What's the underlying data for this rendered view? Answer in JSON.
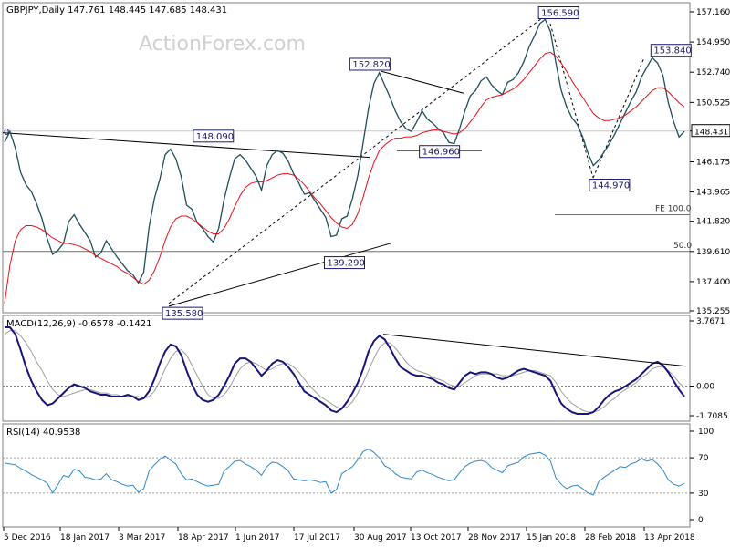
{
  "watermark": "ActionForex.com",
  "chart_data": {
    "type": "line",
    "symbol": "GBPJPY",
    "timeframe": "Daily",
    "header": "GBPJPY,Daily  147.761 148.445 147.685 148.431",
    "x_labels": [
      "5 Dec 2016",
      "18 Jan 2017",
      "3 Mar 2017",
      "18 Apr 2017",
      "1 Jun 2017",
      "17 Jul 2017",
      "30 Aug 2017",
      "13 Oct 2017",
      "28 Nov 2017",
      "15 Jan 2018",
      "28 Feb 2018",
      "13 Apr 2018"
    ],
    "price_panel": {
      "y_ticks": [
        "157.160",
        "154.950",
        "152.740",
        "150.525",
        "148.431",
        "146.175",
        "143.965",
        "141.820",
        "139.610",
        "137.400",
        "135.255"
      ],
      "ylim": [
        135.255,
        157.16
      ],
      "last_price": "148.431",
      "annotations": [
        {
          "label": "156.590",
          "x": "2018-01-23",
          "y": 156.59
        },
        {
          "label": "153.840",
          "x": "2018-04-17",
          "y": 153.84
        },
        {
          "label": "152.820",
          "x": "2017-09-04",
          "y": 152.82
        },
        {
          "label": "148.090",
          "x": "2017-05-10",
          "y": 148.09
        },
        {
          "label": "146.960",
          "x": "2017-10-26",
          "y": 146.96
        },
        {
          "label": "144.970",
          "x": "2018-03-02",
          "y": 144.97
        },
        {
          "label": "139.290",
          "x": "2017-08-16",
          "y": 139.29
        },
        {
          "label": "135.580",
          "x": "2017-04-17",
          "y": 135.58
        }
      ],
      "fe_label": "FE 100.0",
      "fe_level": 142.3,
      "fib_label": "50.0",
      "fib_level": 139.61,
      "cut_label": "0",
      "close_series": [
        147.6,
        148.4,
        147.2,
        145.4,
        144.5,
        144.0,
        143.1,
        142.0,
        140.5,
        139.4,
        139.7,
        140.2,
        141.8,
        142.3,
        141.6,
        141.0,
        140.4,
        139.2,
        139.5,
        140.4,
        139.8,
        139.2,
        138.7,
        138.2,
        137.9,
        137.3,
        138.1,
        141.4,
        143.5,
        144.9,
        146.7,
        147.1,
        146.4,
        145.1,
        143.0,
        142.7,
        141.7,
        141.3,
        140.7,
        140.3,
        141.3,
        143.4,
        145.0,
        146.4,
        146.7,
        146.3,
        145.7,
        145.1,
        144.1,
        145.9,
        146.7,
        147.0,
        146.8,
        146.2,
        145.3,
        144.6,
        143.8,
        143.9,
        143.3,
        142.7,
        142.1,
        140.7,
        140.8,
        142.0,
        142.2,
        143.5,
        145.2,
        147.6,
        150.1,
        151.9,
        152.7,
        151.8,
        150.9,
        149.9,
        149.1,
        148.6,
        148.4,
        149.1,
        149.9,
        149.3,
        149.0,
        148.6,
        148.3,
        147.6,
        147.5,
        148.6,
        149.9,
        151.0,
        151.4,
        152.1,
        152.4,
        151.8,
        151.4,
        151.1,
        152.0,
        152.2,
        152.7,
        153.5,
        154.6,
        155.4,
        156.3,
        156.6,
        155.7,
        153.4,
        151.4,
        150.2,
        149.4,
        148.9,
        148.0,
        146.8,
        145.9,
        146.3,
        146.9,
        147.5,
        148.2,
        149.0,
        149.8,
        150.6,
        151.3,
        152.4,
        153.1,
        153.8,
        153.4,
        152.5,
        150.5,
        149.1,
        148.0,
        148.4
      ],
      "ma_series": [
        135.8,
        138.6,
        140.4,
        141.2,
        141.5,
        141.5,
        141.4,
        141.2,
        140.9,
        140.6,
        140.4,
        140.2,
        140.2,
        140.1,
        140.0,
        139.8,
        139.6,
        139.3,
        139.1,
        138.9,
        138.7,
        138.5,
        138.2,
        138.0,
        137.7,
        137.4,
        137.2,
        137.5,
        138.2,
        139.2,
        140.4,
        141.4,
        142.0,
        142.2,
        142.2,
        142.0,
        141.7,
        141.4,
        141.1,
        140.9,
        140.9,
        141.3,
        142.0,
        142.9,
        143.7,
        144.3,
        144.6,
        144.7,
        144.7,
        144.8,
        145.0,
        145.2,
        145.3,
        145.3,
        145.2,
        144.9,
        144.5,
        144.0,
        143.5,
        143.1,
        142.6,
        142.1,
        141.7,
        141.4,
        141.3,
        141.6,
        142.4,
        143.6,
        145.0,
        146.1,
        147.0,
        147.4,
        147.7,
        147.9,
        147.9,
        148.0,
        148.0,
        148.1,
        148.3,
        148.4,
        148.5,
        148.5,
        148.4,
        148.3,
        148.2,
        148.3,
        148.6,
        149.1,
        149.6,
        150.2,
        150.7,
        150.9,
        151.0,
        151.1,
        151.3,
        151.5,
        151.8,
        152.2,
        152.7,
        153.2,
        153.7,
        154.1,
        154.2,
        153.9,
        153.4,
        152.8,
        152.1,
        151.5,
        150.9,
        150.3,
        149.7,
        149.4,
        149.2,
        149.2,
        149.3,
        149.4,
        149.6,
        149.9,
        150.2,
        150.6,
        151.0,
        151.4,
        151.6,
        151.6,
        151.3,
        150.9,
        150.5,
        150.2
      ]
    },
    "macd_panel": {
      "label": "MACD(12,26,9) -0.6578 -0.1421",
      "y_ticks": [
        "3.7671",
        "0.00",
        "-1.7085"
      ],
      "ylim": [
        -1.7085,
        3.7671
      ],
      "macd_series": [
        3.4,
        3.4,
        3.0,
        2.1,
        1.1,
        0.3,
        -0.3,
        -0.8,
        -1.1,
        -1.0,
        -0.7,
        -0.4,
        -0.1,
        0.1,
        0.0,
        -0.1,
        -0.3,
        -0.4,
        -0.5,
        -0.5,
        -0.6,
        -0.6,
        -0.6,
        -0.5,
        -0.6,
        -0.8,
        -0.7,
        -0.3,
        0.4,
        1.3,
        2.0,
        2.4,
        2.3,
        1.8,
        0.9,
        0.1,
        -0.5,
        -0.8,
        -0.9,
        -0.8,
        -0.5,
        0.0,
        0.6,
        1.3,
        1.6,
        1.6,
        1.4,
        1.0,
        0.6,
        0.9,
        1.3,
        1.5,
        1.4,
        1.1,
        0.7,
        0.2,
        -0.3,
        -0.5,
        -0.7,
        -0.9,
        -1.1,
        -1.4,
        -1.5,
        -1.3,
        -0.9,
        -0.4,
        0.2,
        1.0,
        2.0,
        2.6,
        2.9,
        2.7,
        2.2,
        1.6,
        1.1,
        0.9,
        0.7,
        0.6,
        0.6,
        0.5,
        0.4,
        0.2,
        0.1,
        -0.1,
        -0.2,
        0.2,
        0.6,
        0.8,
        0.7,
        0.8,
        0.8,
        0.7,
        0.5,
        0.4,
        0.5,
        0.7,
        0.9,
        1.0,
        0.9,
        0.8,
        0.7,
        0.6,
        0.3,
        -0.4,
        -1.0,
        -1.3,
        -1.5,
        -1.6,
        -1.6,
        -1.6,
        -1.5,
        -1.2,
        -0.8,
        -0.5,
        -0.3,
        -0.2,
        0.0,
        0.2,
        0.4,
        0.7,
        1.0,
        1.3,
        1.4,
        1.2,
        0.8,
        0.3,
        -0.2,
        -0.6
      ],
      "signal_series": [
        3.0,
        3.2,
        3.2,
        2.9,
        2.5,
        2.0,
        1.4,
        0.9,
        0.3,
        -0.2,
        -0.5,
        -0.6,
        -0.5,
        -0.4,
        -0.3,
        -0.2,
        -0.2,
        -0.3,
        -0.4,
        -0.4,
        -0.5,
        -0.5,
        -0.6,
        -0.6,
        -0.6,
        -0.6,
        -0.7,
        -0.6,
        -0.3,
        0.3,
        1.0,
        1.6,
        2.0,
        2.1,
        1.8,
        1.2,
        0.6,
        0.0,
        -0.5,
        -0.7,
        -0.7,
        -0.5,
        -0.1,
        0.5,
        1.0,
        1.3,
        1.4,
        1.3,
        1.1,
        0.9,
        1.0,
        1.2,
        1.3,
        1.3,
        1.1,
        0.8,
        0.4,
        0.0,
        -0.3,
        -0.6,
        -0.8,
        -1.0,
        -1.2,
        -1.3,
        -1.2,
        -0.9,
        -0.4,
        0.2,
        0.9,
        1.6,
        2.2,
        2.5,
        2.5,
        2.2,
        1.8,
        1.4,
        1.1,
        0.9,
        0.8,
        0.7,
        0.5,
        0.4,
        0.3,
        0.1,
        0.0,
        0.0,
        0.2,
        0.4,
        0.6,
        0.7,
        0.7,
        0.7,
        0.7,
        0.6,
        0.6,
        0.6,
        0.7,
        0.8,
        0.9,
        0.9,
        0.8,
        0.7,
        0.6,
        0.2,
        -0.3,
        -0.7,
        -1.0,
        -1.2,
        -1.4,
        -1.5,
        -1.5,
        -1.4,
        -1.2,
        -0.9,
        -0.7,
        -0.4,
        -0.2,
        0.0,
        0.2,
        0.5,
        0.7,
        1.0,
        1.1,
        1.1,
        0.9,
        0.6,
        0.2,
        -0.1
      ]
    },
    "rsi_panel": {
      "label": "RSI(14) 40.9538",
      "y_ticks": [
        "100",
        "70",
        "30",
        "0"
      ],
      "ylim": [
        0,
        100
      ],
      "levels": [
        70,
        30
      ],
      "series": [
        64,
        63,
        62,
        58,
        55,
        51,
        48,
        45,
        41,
        30,
        40,
        50,
        48,
        57,
        55,
        48,
        47,
        45,
        46,
        52,
        45,
        43,
        40,
        38,
        39,
        31,
        35,
        55,
        62,
        68,
        72,
        67,
        63,
        52,
        45,
        46,
        43,
        40,
        38,
        39,
        40,
        55,
        60,
        66,
        67,
        63,
        60,
        56,
        50,
        60,
        65,
        64,
        60,
        55,
        46,
        45,
        44,
        45,
        44,
        42,
        43,
        30,
        34,
        52,
        56,
        60,
        68,
        77,
        80,
        76,
        70,
        61,
        58,
        52,
        48,
        47,
        46,
        54,
        56,
        53,
        51,
        48,
        46,
        44,
        45,
        53,
        60,
        64,
        66,
        67,
        65,
        59,
        56,
        53,
        61,
        63,
        65,
        71,
        74,
        75,
        76,
        73,
        66,
        47,
        40,
        35,
        38,
        39,
        35,
        30,
        28,
        43,
        48,
        52,
        56,
        60,
        59,
        63,
        65,
        69,
        66,
        68,
        63,
        56,
        45,
        40,
        38,
        41
      ]
    }
  }
}
